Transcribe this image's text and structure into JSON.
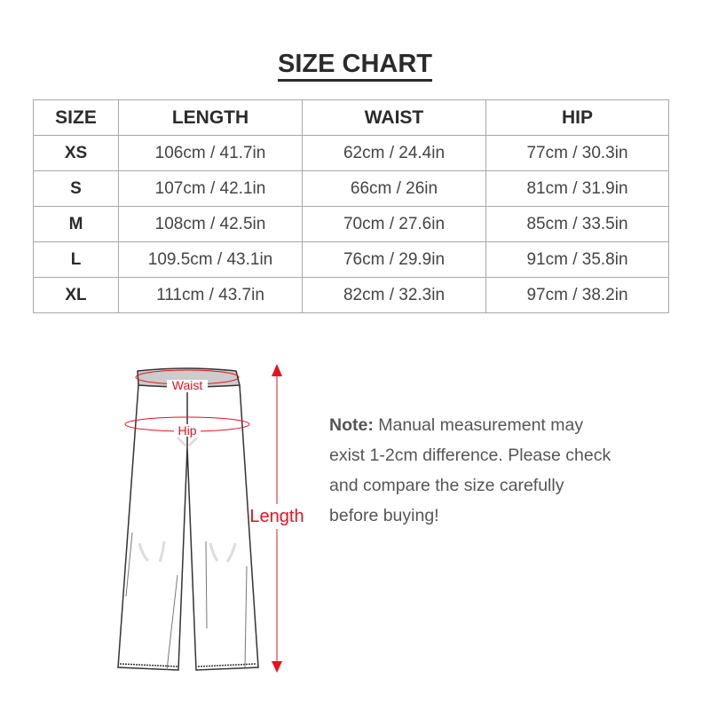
{
  "title": "SIZE CHART",
  "table": {
    "headers": [
      "SIZE",
      "LENGTH",
      "WAIST",
      "HIP"
    ],
    "rows": [
      [
        "XS",
        "106cm / 41.7in",
        "62cm / 24.4in",
        "77cm / 30.3in"
      ],
      [
        "S",
        "107cm / 42.1in",
        "66cm / 26in",
        "81cm / 31.9in"
      ],
      [
        "M",
        "108cm / 42.5in",
        "70cm / 27.6in",
        "85cm / 33.5in"
      ],
      [
        "L",
        "109.5cm / 43.1in",
        "76cm / 29.9in",
        "91cm / 35.8in"
      ],
      [
        "XL",
        "111cm / 43.7in",
        "82cm / 32.3in",
        "97cm / 38.2in"
      ]
    ]
  },
  "diagram": {
    "waist": "Waist",
    "hip": "Hip",
    "length": "Length",
    "accent": "#e8111f"
  },
  "note": {
    "label": "Note:",
    "text": " Manual measurement may exist 1-2cm difference. Please check and compare the size carefully before buying!"
  }
}
